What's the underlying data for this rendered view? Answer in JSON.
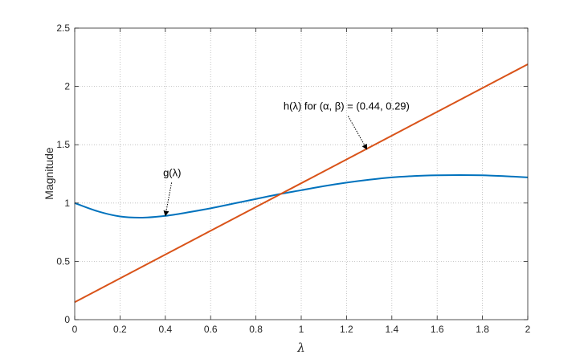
{
  "chart_data": {
    "type": "line",
    "xlabel": "λ",
    "ylabel": "Magnitude",
    "xlim": [
      0,
      2
    ],
    "ylim": [
      0,
      2.5
    ],
    "grid": true,
    "xticks": [
      0,
      0.2,
      0.4,
      0.6,
      0.8,
      1,
      1.2,
      1.4,
      1.6,
      1.8,
      2
    ],
    "xtick_labels": [
      "0",
      "0.2",
      "0.4",
      "0.6",
      "0.8",
      "1",
      "1.2",
      "1.4",
      "1.6",
      "1.8",
      "2"
    ],
    "yticks": [
      0,
      0.5,
      1,
      1.5,
      2,
      2.5
    ],
    "ytick_labels": [
      "0",
      "0.5",
      "1",
      "1.5",
      "2",
      "2.5"
    ],
    "series": [
      {
        "name": "g(λ)",
        "color": "#0072BD",
        "x": [
          0,
          0.1,
          0.2,
          0.3,
          0.4,
          0.5,
          0.6,
          0.7,
          0.8,
          0.9,
          1.0,
          1.1,
          1.2,
          1.3,
          1.4,
          1.5,
          1.6,
          1.7,
          1.8,
          1.9,
          2.0
        ],
        "y": [
          1.0,
          0.93,
          0.885,
          0.875,
          0.89,
          0.92,
          0.955,
          0.995,
          1.035,
          1.075,
          1.11,
          1.145,
          1.175,
          1.2,
          1.22,
          1.232,
          1.238,
          1.24,
          1.238,
          1.23,
          1.22
        ]
      },
      {
        "name": "h(λ) for (α, β) = (0.44, 0.29)",
        "color": "#D95319",
        "x": [
          0,
          2
        ],
        "y": [
          0.15,
          2.19
        ]
      }
    ],
    "annotations": [
      {
        "text": "g(λ)",
        "x": 0.43,
        "y": 1.23,
        "arrow_to": [
          0.4,
          0.89
        ]
      },
      {
        "text": "h(λ) for (α, β) = (0.44, 0.29)",
        "x": 1.2,
        "y": 1.8,
        "arrow_to": [
          1.29,
          1.46
        ]
      }
    ]
  }
}
